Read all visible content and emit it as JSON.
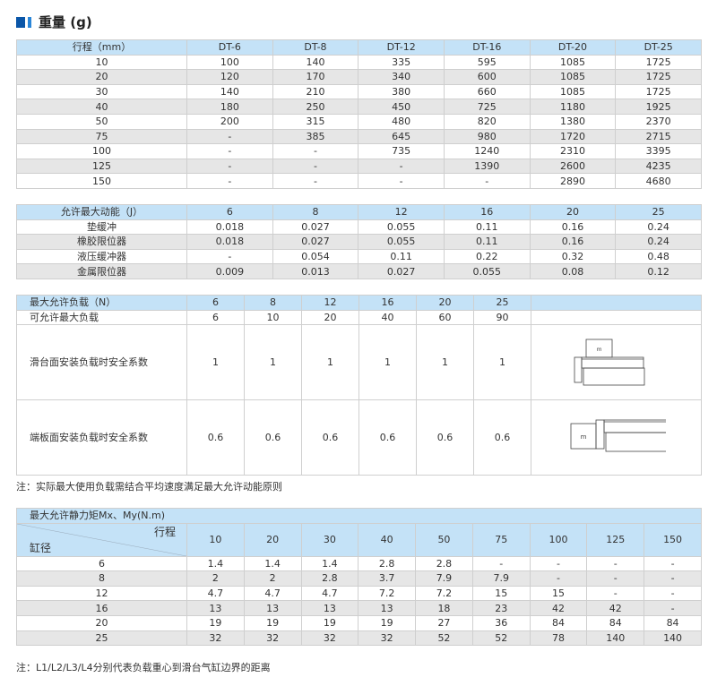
{
  "title": "重量 (g)",
  "weight": {
    "headers": [
      "行程（mm）",
      "DT-6",
      "DT-8",
      "DT-12",
      "DT-16",
      "DT-20",
      "DT-25"
    ],
    "rows": [
      [
        "10",
        "100",
        "140",
        "335",
        "595",
        "1085",
        "1725"
      ],
      [
        "20",
        "120",
        "170",
        "340",
        "600",
        "1085",
        "1725"
      ],
      [
        "30",
        "140",
        "210",
        "380",
        "660",
        "1085",
        "1725"
      ],
      [
        "40",
        "180",
        "250",
        "450",
        "725",
        "1180",
        "1925"
      ],
      [
        "50",
        "200",
        "315",
        "480",
        "820",
        "1380",
        "2370"
      ],
      [
        "75",
        "-",
        "385",
        "645",
        "980",
        "1720",
        "2715"
      ],
      [
        "100",
        "-",
        "-",
        "735",
        "1240",
        "2310",
        "3395"
      ],
      [
        "125",
        "-",
        "-",
        "-",
        "1390",
        "2600",
        "4235"
      ],
      [
        "150",
        "-",
        "-",
        "-",
        "-",
        "2890",
        "4680"
      ]
    ]
  },
  "energy": {
    "headers": [
      "允许最大动能（J）",
      "6",
      "8",
      "12",
      "16",
      "20",
      "25"
    ],
    "rows": [
      [
        "垫缓冲",
        "0.018",
        "0.027",
        "0.055",
        "0.11",
        "0.16",
        "0.24"
      ],
      [
        "橡胶限位器",
        "0.018",
        "0.027",
        "0.055",
        "0.11",
        "0.16",
        "0.24"
      ],
      [
        "液压缓冲器",
        "-",
        "0.054",
        "0.11",
        "0.22",
        "0.32",
        "0.48"
      ],
      [
        "金属限位器",
        "0.009",
        "0.013",
        "0.027",
        "0.055",
        "0.08",
        "0.12"
      ]
    ]
  },
  "load": {
    "headers": [
      "最大允许负载（N）",
      "6",
      "8",
      "12",
      "16",
      "20",
      "25"
    ],
    "rows": [
      [
        "可允许最大负载",
        "6",
        "10",
        "20",
        "40",
        "60",
        "90"
      ],
      [
        "滑台面安装负载时安全系数",
        "1",
        "1",
        "1",
        "1",
        "1",
        "1"
      ],
      [
        "端板面安装负载时安全系数",
        "0.6",
        "0.6",
        "0.6",
        "0.6",
        "0.6",
        "0.6"
      ]
    ],
    "diagram_label": "m"
  },
  "note1": "注：实际最大使用负载需结合平均速度满足最大允许动能原则",
  "moment": {
    "title": "最大允许静力矩Mx、My(N.m)",
    "corner_top": "行程",
    "corner_bottom": "缸径",
    "strokes": [
      "10",
      "20",
      "30",
      "40",
      "50",
      "75",
      "100",
      "125",
      "150"
    ],
    "rows": [
      [
        "6",
        "1.4",
        "1.4",
        "1.4",
        "2.8",
        "2.8",
        "-",
        "-",
        "-",
        "-"
      ],
      [
        "8",
        "2",
        "2",
        "2.8",
        "3.7",
        "7.9",
        "7.9",
        "-",
        "-",
        "-"
      ],
      [
        "12",
        "4.7",
        "4.7",
        "4.7",
        "7.2",
        "7.2",
        "15",
        "15",
        "-",
        "-"
      ],
      [
        "16",
        "13",
        "13",
        "13",
        "13",
        "18",
        "23",
        "42",
        "42",
        "-"
      ],
      [
        "20",
        "19",
        "19",
        "19",
        "19",
        "27",
        "36",
        "84",
        "84",
        "84"
      ],
      [
        "25",
        "32",
        "32",
        "32",
        "32",
        "52",
        "52",
        "78",
        "140",
        "140"
      ]
    ]
  },
  "note2": "注：L1/L2/L3/L4分别代表负载重心到滑台气缸边界的距离"
}
